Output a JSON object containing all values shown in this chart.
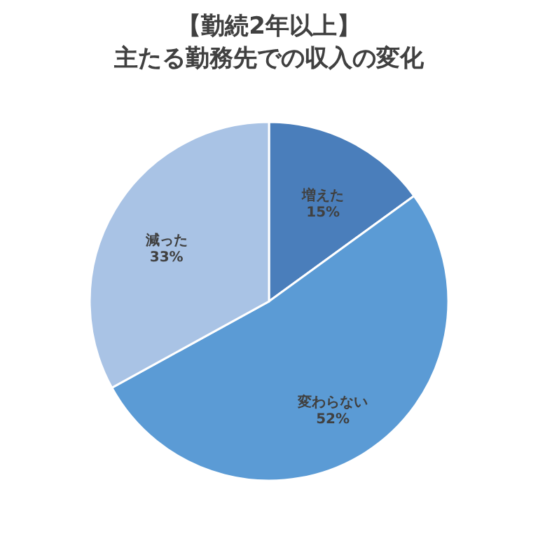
{
  "chart_data": {
    "type": "pie",
    "title": "【勤続2年以上】",
    "subtitle": "主たる勤務先での収入の変化",
    "categories": [
      "増えた",
      "変わらない",
      "減った"
    ],
    "values": [
      15,
      52,
      33
    ],
    "value_labels": [
      "15%",
      "52%",
      "33%"
    ],
    "colors": [
      "#4a7ebb",
      "#5b9bd5",
      "#a9c3e5"
    ],
    "legend": false
  }
}
